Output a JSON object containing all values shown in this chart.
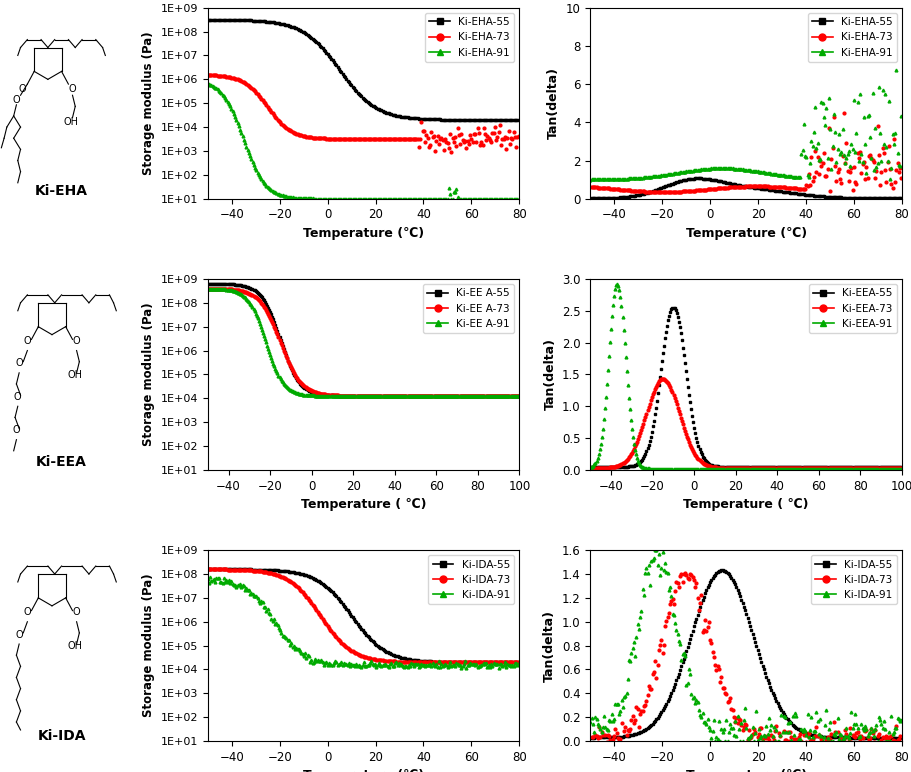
{
  "rows": [
    {
      "label": "Ki-EHA",
      "storage_legend": [
        "Ki-EHA-55",
        "Ki-EHA-73",
        "Ki-EHA-91"
      ],
      "tan_legend": [
        "Ki-EHA-55",
        "Ki-EHA-73",
        "Ki-EHA-91"
      ],
      "storage_xlim": [
        -50,
        80
      ],
      "tan_xlim": [
        -50,
        80
      ],
      "tan_ylim": [
        0,
        10
      ],
      "storage_xticks": [
        -40,
        -20,
        0,
        20,
        40,
        60,
        80
      ],
      "tan_xticks": [
        -40,
        -20,
        0,
        20,
        40,
        60,
        80
      ],
      "tan_yticks": [
        0,
        2,
        4,
        6,
        8,
        10
      ]
    },
    {
      "label": "Ki-EEA",
      "storage_legend": [
        "Ki-EE A-55",
        "Ki-EE A-73",
        "Ki-EE A-91"
      ],
      "tan_legend": [
        "Ki-EEA-55",
        "Ki-EEA-73",
        "Ki-EEA-91"
      ],
      "storage_xlim": [
        -50,
        100
      ],
      "tan_xlim": [
        -50,
        100
      ],
      "tan_ylim": [
        0,
        3.0
      ],
      "storage_xticks": [
        -40,
        -20,
        0,
        20,
        40,
        60,
        80,
        100
      ],
      "tan_xticks": [
        -40,
        -20,
        0,
        20,
        40,
        60,
        80,
        100
      ],
      "tan_yticks": [
        0.0,
        0.5,
        1.0,
        1.5,
        2.0,
        2.5,
        3.0
      ]
    },
    {
      "label": "Ki-IDA",
      "storage_legend": [
        "Ki-IDA-55",
        "Ki-IDA-73",
        "Ki-IDA-91"
      ],
      "tan_legend": [
        "Ki-IDA-55",
        "Ki-IDA-73",
        "Ki-IDA-91"
      ],
      "storage_xlim": [
        -50,
        80
      ],
      "tan_xlim": [
        -50,
        80
      ],
      "tan_ylim": [
        0,
        1.6
      ],
      "storage_xticks": [
        -40,
        -20,
        0,
        20,
        40,
        60,
        80
      ],
      "tan_xticks": [
        -40,
        -20,
        0,
        20,
        40,
        60,
        80
      ],
      "tan_yticks": [
        0.0,
        0.2,
        0.4,
        0.6,
        0.8,
        1.0,
        1.2,
        1.4,
        1.6
      ]
    }
  ],
  "colors": [
    "black",
    "red",
    "#00aa00"
  ],
  "markers": [
    "s",
    "o",
    "^"
  ],
  "ylabel_storage": "Storage modulus (Pa)",
  "ylabel_tan": "Tan(delta)",
  "xlabel_eha": "Temperature (℃)",
  "xlabel_eea": "Temperature ( ℃)",
  "xlabel_ida": "Temperature (℃)"
}
